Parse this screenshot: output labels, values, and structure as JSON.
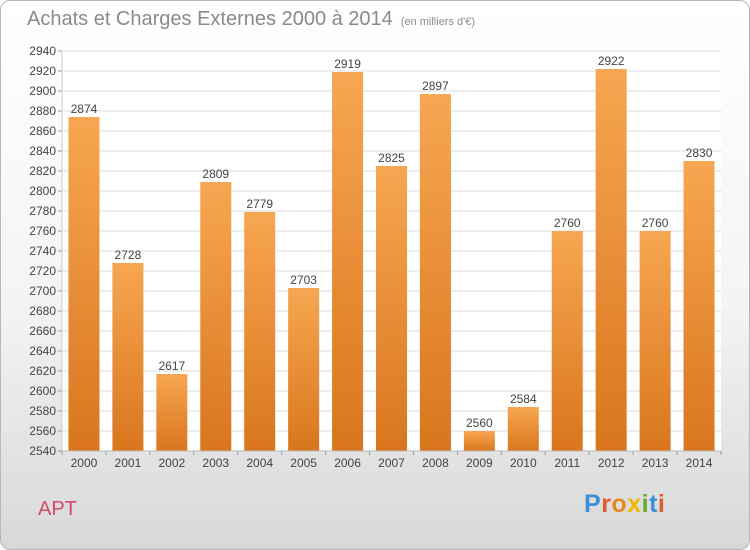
{
  "header": {
    "title": "Achats et Charges Externes 2000 à 2014",
    "unit": "(en milliers d'€)"
  },
  "footer": {
    "place": "APT",
    "logo_text": "Proxiti"
  },
  "colors": {
    "bar_top": "#f7a651",
    "bar_bottom": "#d9761d",
    "axis_text": "#444444",
    "title": "#8a8a8a",
    "place": "#d24a6a",
    "logo_letters": [
      "#3a8fd8",
      "#e05a2a",
      "#e88a1a",
      "#f0b800",
      "#6aaa2a",
      "#3a8fd8",
      "#e05a2a"
    ]
  },
  "chart_data": {
    "type": "bar",
    "title": "Achats et Charges Externes 2000 à 2014",
    "xlabel": "",
    "ylabel": "",
    "categories": [
      "2000",
      "2001",
      "2002",
      "2003",
      "2004",
      "2005",
      "2006",
      "2007",
      "2008",
      "2009",
      "2010",
      "2011",
      "2012",
      "2013",
      "2014"
    ],
    "values": [
      2874,
      2728,
      2617,
      2809,
      2779,
      2703,
      2919,
      2825,
      2897,
      2560,
      2584,
      2760,
      2922,
      2760,
      2830
    ],
    "data_labels": [
      "2874",
      "2728",
      "2617",
      "2809",
      "2779",
      "2703",
      "2919",
      "2825",
      "2897",
      "2560",
      "2584",
      "2760",
      "2922",
      "2760",
      "2830"
    ],
    "ylim": [
      2540,
      2940
    ],
    "ytick_step": 20,
    "grid": true,
    "legend": "none"
  }
}
